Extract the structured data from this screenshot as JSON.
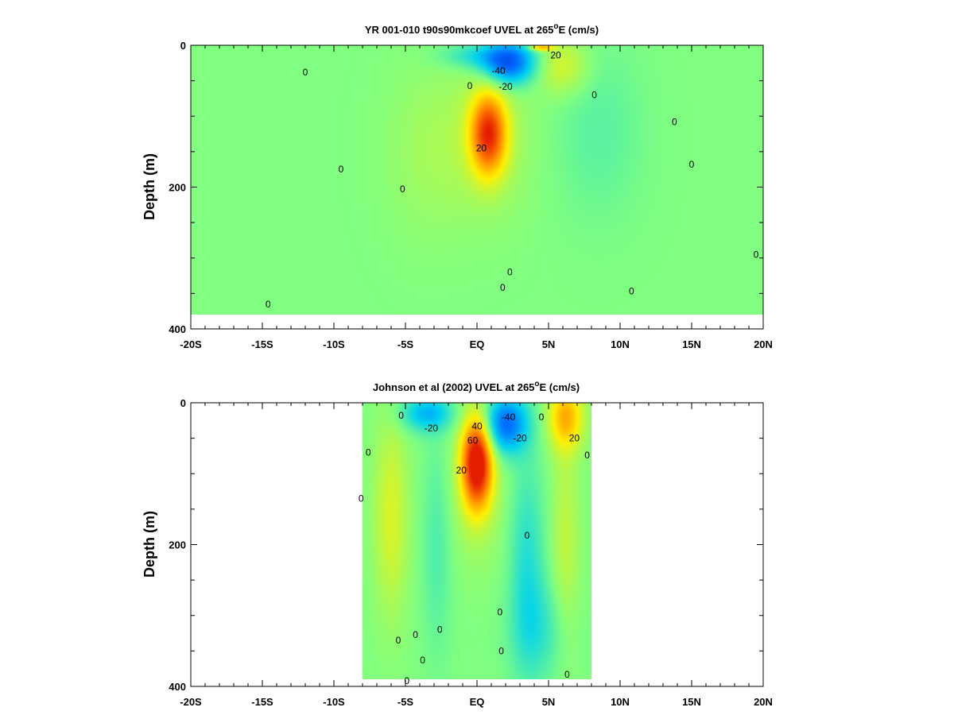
{
  "chart_data": [
    {
      "type": "heatmap",
      "title_main": "YR 001-010 t90s90mkcoef UVEL at 265",
      "title_sup": "o",
      "title_tail": "E (cm/s)",
      "ylabel": "Depth (m)",
      "xlabel": "",
      "xlim": [
        -20,
        20
      ],
      "ylim": [
        400,
        0
      ],
      "x_ticks": [
        {
          "value": -20,
          "label": "-20S"
        },
        {
          "value": -15,
          "label": "-15S"
        },
        {
          "value": -10,
          "label": "-10S"
        },
        {
          "value": -5,
          "label": "-5S"
        },
        {
          "value": 0,
          "label": "EQ"
        },
        {
          "value": 5,
          "label": "5N"
        },
        {
          "value": 10,
          "label": "10N"
        },
        {
          "value": 15,
          "label": "15N"
        },
        {
          "value": 20,
          "label": "20N"
        }
      ],
      "y_ticks": [
        {
          "value": 0,
          "label": "0"
        },
        {
          "value": 200,
          "label": "200"
        },
        {
          "value": 400,
          "label": "400"
        }
      ],
      "data_extent": {
        "lat": [
          -20,
          20
        ],
        "depth": [
          0,
          380
        ]
      },
      "background_value": 0,
      "features": [
        {
          "name": "surface westward jet",
          "lat": 2.2,
          "depth": 25,
          "lat_width": 1.8,
          "depth_width": 30,
          "value": -45
        },
        {
          "name": "surface westward extension",
          "lat": 0.0,
          "depth": 15,
          "lat_width": 2.5,
          "depth_width": 18,
          "value": -15
        },
        {
          "name": "equatorial undercurrent",
          "lat": 0.8,
          "depth": 125,
          "lat_width": 1.2,
          "depth_width": 55,
          "value": 52
        },
        {
          "name": "undercurrent halo",
          "lat": 0.8,
          "depth": 130,
          "lat_width": 3.0,
          "depth_width": 110,
          "value": 8
        },
        {
          "name": "NECC surface core",
          "lat": 6.0,
          "depth": 30,
          "lat_width": 1.8,
          "depth_width": 40,
          "value": 14
        },
        {
          "name": "NECC patch",
          "lat": 4.5,
          "depth": 3,
          "lat_width": 0.8,
          "depth_width": 5,
          "value": 30
        },
        {
          "name": "south eastward band",
          "lat": -3.5,
          "depth": 150,
          "lat_width": 3.0,
          "depth_width": 120,
          "value": 5
        },
        {
          "name": "north westward band",
          "lat": 8.5,
          "depth": 120,
          "lat_width": 3.0,
          "depth_width": 120,
          "value": -6
        }
      ],
      "contour_labels": [
        {
          "text": "-40",
          "lat": 1.5,
          "depth": 36
        },
        {
          "text": "-20",
          "lat": 2.0,
          "depth": 58
        },
        {
          "text": "20",
          "lat": 5.5,
          "depth": 14
        },
        {
          "text": "20",
          "lat": 0.3,
          "depth": 145
        },
        {
          "text": "0",
          "lat": -12.0,
          "depth": 38
        },
        {
          "text": "0",
          "lat": -9.5,
          "depth": 175
        },
        {
          "text": "0",
          "lat": -5.2,
          "depth": 203
        },
        {
          "text": "0",
          "lat": -0.5,
          "depth": 57
        },
        {
          "text": "0",
          "lat": 8.2,
          "depth": 70
        },
        {
          "text": "0",
          "lat": 13.8,
          "depth": 108
        },
        {
          "text": "0",
          "lat": 15.0,
          "depth": 168
        },
        {
          "text": "0",
          "lat": 2.3,
          "depth": 320
        },
        {
          "text": "0",
          "lat": 1.8,
          "depth": 342
        },
        {
          "text": "0",
          "lat": 10.8,
          "depth": 347
        },
        {
          "text": "0",
          "lat": -14.6,
          "depth": 365
        },
        {
          "text": "0",
          "lat": 19.5,
          "depth": 295
        }
      ]
    },
    {
      "type": "heatmap",
      "title_main": "Johnson et al (2002) UVEL at 265",
      "title_sup": "o",
      "title_tail": "E (cm/s)",
      "ylabel": "Depth (m)",
      "xlabel": "",
      "xlim": [
        -20,
        20
      ],
      "ylim": [
        400,
        0
      ],
      "x_ticks": [
        {
          "value": -20,
          "label": "-20S"
        },
        {
          "value": -15,
          "label": "-15S"
        },
        {
          "value": -10,
          "label": "-10S"
        },
        {
          "value": -5,
          "label": "-5S"
        },
        {
          "value": 0,
          "label": "EQ"
        },
        {
          "value": 5,
          "label": "5N"
        },
        {
          "value": 10,
          "label": "10N"
        },
        {
          "value": 15,
          "label": "15N"
        },
        {
          "value": 20,
          "label": "20N"
        }
      ],
      "y_ticks": [
        {
          "value": 0,
          "label": "0"
        },
        {
          "value": 200,
          "label": "200"
        },
        {
          "value": 400,
          "label": "400"
        }
      ],
      "data_extent": {
        "lat": [
          -8,
          8
        ],
        "depth": [
          0,
          390
        ]
      },
      "background_value": 0,
      "features": [
        {
          "name": "equatorial undercurrent",
          "lat": 0.0,
          "depth": 85,
          "lat_width": 1.0,
          "depth_width": 60,
          "value": 65
        },
        {
          "name": "undercurrent halo",
          "lat": 0.0,
          "depth": 110,
          "lat_width": 1.8,
          "depth_width": 110,
          "value": 10
        },
        {
          "name": "westward jet north",
          "lat": 2.0,
          "depth": 30,
          "lat_width": 1.5,
          "depth_width": 40,
          "value": -42
        },
        {
          "name": "westward surface south",
          "lat": -3.5,
          "depth": 15,
          "lat_width": 1.8,
          "depth_width": 25,
          "value": -25
        },
        {
          "name": "NECC",
          "lat": 6.2,
          "depth": 20,
          "lat_width": 1.2,
          "depth_width": 45,
          "value": 30
        },
        {
          "name": "south band",
          "lat": -6.0,
          "depth": 160,
          "lat_width": 1.2,
          "depth_width": 140,
          "value": 14
        },
        {
          "name": "south negative band",
          "lat": -2.8,
          "depth": 200,
          "lat_width": 1.0,
          "depth_width": 150,
          "value": -8
        },
        {
          "name": "north negative band",
          "lat": 3.5,
          "depth": 230,
          "lat_width": 1.2,
          "depth_width": 150,
          "value": -14
        },
        {
          "name": "north positive band",
          "lat": 6.2,
          "depth": 200,
          "lat_width": 1.0,
          "depth_width": 160,
          "value": 10
        },
        {
          "name": "deep north",
          "lat": 4.5,
          "depth": 320,
          "lat_width": 2.0,
          "depth_width": 70,
          "value": -10
        }
      ],
      "contour_labels": [
        {
          "text": "-20",
          "lat": -3.2,
          "depth": 36
        },
        {
          "text": "-40",
          "lat": 2.2,
          "depth": 20
        },
        {
          "text": "-20",
          "lat": 3.0,
          "depth": 50
        },
        {
          "text": "40",
          "lat": 0.0,
          "depth": 33
        },
        {
          "text": "60",
          "lat": -0.3,
          "depth": 53
        },
        {
          "text": "20",
          "lat": -1.1,
          "depth": 95
        },
        {
          "text": "20",
          "lat": 6.8,
          "depth": 50
        },
        {
          "text": "0",
          "lat": -5.3,
          "depth": 18
        },
        {
          "text": "0",
          "lat": 4.5,
          "depth": 20
        },
        {
          "text": "0",
          "lat": -7.6,
          "depth": 70
        },
        {
          "text": "0",
          "lat": -8.1,
          "depth": 135
        },
        {
          "text": "0",
          "lat": 7.7,
          "depth": 74
        },
        {
          "text": "0",
          "lat": 3.5,
          "depth": 187
        },
        {
          "text": "0",
          "lat": 1.6,
          "depth": 295
        },
        {
          "text": "0",
          "lat": -5.5,
          "depth": 335
        },
        {
          "text": "0",
          "lat": -4.3,
          "depth": 327
        },
        {
          "text": "0",
          "lat": -2.6,
          "depth": 320
        },
        {
          "text": "0",
          "lat": -3.8,
          "depth": 363
        },
        {
          "text": "0",
          "lat": 1.7,
          "depth": 350
        },
        {
          "text": "0",
          "lat": -4.9,
          "depth": 392
        },
        {
          "text": "0",
          "lat": 6.3,
          "depth": 383
        }
      ]
    }
  ]
}
